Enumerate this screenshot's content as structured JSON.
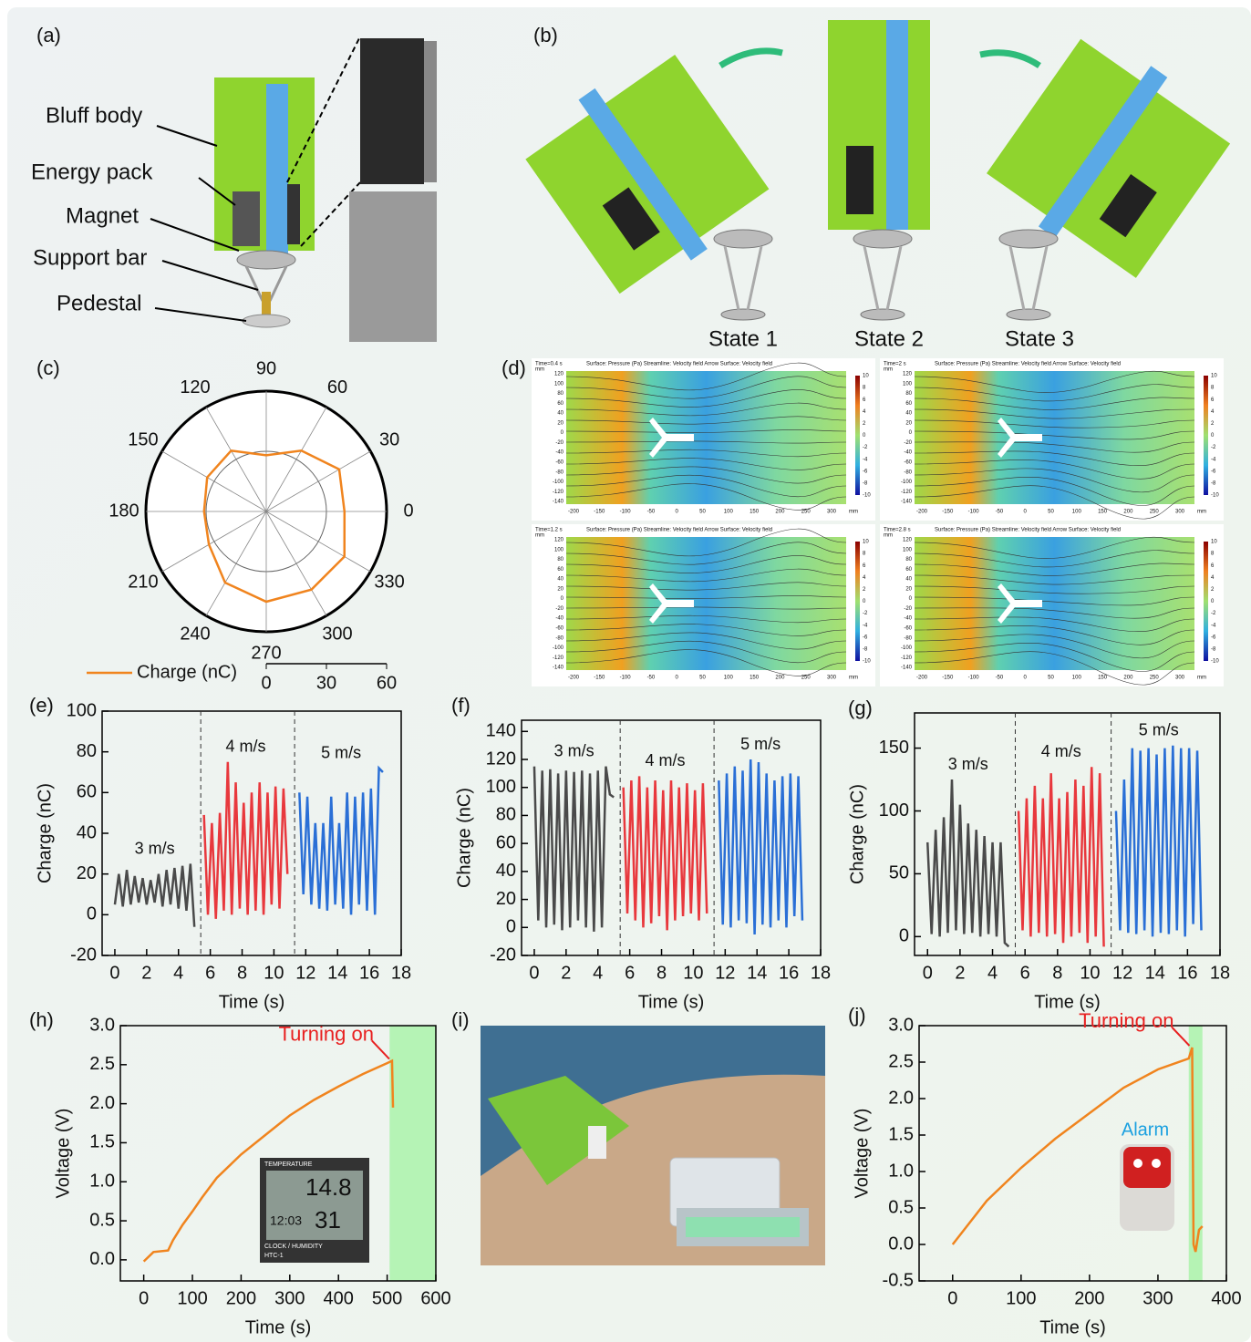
{
  "panel_labels": [
    "(a)",
    "(b)",
    "(c)",
    "(d)",
    "(e)",
    "(f)",
    "(g)",
    "(h)",
    "(i)",
    "(j)"
  ],
  "diagram_a": {
    "labels": [
      "Bluff body",
      "Energy pack",
      "Magnet",
      "Support bar",
      "Pedestal"
    ]
  },
  "diagram_b": {
    "states": [
      "State 1",
      "State 2",
      "State 3"
    ]
  },
  "simulation": {
    "panels": [
      "Time=0.4 s",
      "Time=2 s",
      "Time=1.2 s",
      "Time=2.8 s"
    ],
    "header": "Surface: Pressure (Pa)  Streamline: Velocity field  Arrow Surface: Velocity field",
    "unit": "mm",
    "xticks": [
      -200,
      -150,
      -100,
      -50,
      0,
      50,
      100,
      150,
      200,
      250,
      300
    ],
    "yticks": [
      120,
      100,
      80,
      60,
      40,
      20,
      0,
      -20,
      -40,
      -60,
      -80,
      -100,
      -120,
      -140
    ],
    "colorbar": [
      10,
      8,
      6,
      4,
      2,
      0,
      -2,
      -4,
      -6,
      -8,
      -10
    ]
  },
  "insets": {
    "thermometer": [
      "TEMPERATURE",
      "14.8",
      "12:03",
      "31",
      "CLOCK / HUMIDITY",
      "HTC-1"
    ],
    "alarm": "Alarm"
  },
  "chart_data": [
    {
      "type": "polar",
      "series": [
        {
          "name": "Charge (nC)",
          "color": "#f0841e",
          "theta": [
            0,
            30,
            60,
            90,
            120,
            150,
            180,
            210,
            240,
            270,
            300,
            330
          ],
          "values": [
            39,
            42,
            35,
            28,
            35,
            34,
            31,
            33,
            41,
            45,
            45,
            45
          ]
        }
      ],
      "thetaticks": [
        0,
        30,
        60,
        90,
        120,
        150,
        180,
        210,
        240,
        270,
        300,
        330
      ],
      "rlim": [
        0,
        60
      ],
      "rticks": [
        0,
        30,
        60
      ]
    },
    {
      "type": "line",
      "x_label": "Time (s)",
      "y_label": "Charge (nC)",
      "xlim": [
        -0.8,
        18
      ],
      "ylim": [
        -20,
        100
      ],
      "xticks": [
        0,
        2,
        4,
        6,
        8,
        10,
        12,
        14,
        16,
        18
      ],
      "yticks": [
        -20,
        0,
        20,
        40,
        60,
        80,
        100
      ],
      "dividers": [
        5.4,
        11.3
      ],
      "series": [
        {
          "name": "3 m/s",
          "color": "#4a4a4a",
          "x": [
            0,
            0.25,
            0.5,
            0.75,
            1,
            1.25,
            1.5,
            1.75,
            2,
            2.25,
            2.5,
            2.75,
            3,
            3.25,
            3.5,
            3.75,
            4,
            4.25,
            4.5,
            4.75,
            5
          ],
          "values": [
            5,
            20,
            4,
            22,
            5,
            19,
            6,
            18,
            5,
            17,
            6,
            20,
            4,
            22,
            5,
            23,
            3,
            24,
            2,
            25,
            -6
          ]
        },
        {
          "name": "4 m/s",
          "color": "#e8383d",
          "x": [
            5.6,
            5.85,
            6.1,
            6.35,
            6.6,
            6.85,
            7.1,
            7.35,
            7.6,
            7.85,
            8.1,
            8.35,
            8.6,
            8.85,
            9.1,
            9.35,
            9.6,
            9.85,
            10.1,
            10.35,
            10.6,
            10.85
          ],
          "values": [
            49,
            0,
            45,
            -2,
            50,
            2,
            75,
            0,
            65,
            3,
            55,
            0,
            60,
            2,
            65,
            0,
            60,
            5,
            63,
            3,
            62,
            20
          ]
        },
        {
          "name": "5 m/s",
          "color": "#2a6fd6",
          "x": [
            11.6,
            11.85,
            12.1,
            12.35,
            12.6,
            12.85,
            13.1,
            13.35,
            13.6,
            13.85,
            14.1,
            14.35,
            14.6,
            14.85,
            15.1,
            15.35,
            15.6,
            15.85,
            16.1,
            16.35,
            16.6,
            16.85
          ],
          "values": [
            60,
            10,
            58,
            5,
            45,
            3,
            45,
            2,
            58,
            5,
            45,
            3,
            60,
            0,
            58,
            5,
            60,
            2,
            62,
            0,
            72,
            70
          ]
        }
      ]
    },
    {
      "type": "line",
      "x_label": "Time (s)",
      "y_label": "Charge (nC)",
      "xlim": [
        -0.8,
        18
      ],
      "ylim": [
        -20,
        148
      ],
      "xticks": [
        0,
        2,
        4,
        6,
        8,
        10,
        12,
        14,
        16,
        18
      ],
      "yticks": [
        -20,
        0,
        20,
        40,
        60,
        80,
        100,
        120,
        140
      ],
      "dividers": [
        5.4,
        11.3
      ],
      "series": [
        {
          "name": "3 m/s",
          "color": "#4a4a4a",
          "x": [
            0,
            0.25,
            0.5,
            0.75,
            1,
            1.25,
            1.5,
            1.75,
            2,
            2.25,
            2.5,
            2.75,
            3,
            3.25,
            3.5,
            3.75,
            4,
            4.25,
            4.5,
            4.75,
            5
          ],
          "values": [
            115,
            5,
            112,
            0,
            113,
            2,
            110,
            -2,
            112,
            0,
            111,
            5,
            112,
            0,
            110,
            -3,
            112,
            0,
            115,
            95,
            93
          ]
        },
        {
          "name": "4 m/s",
          "color": "#e8383d",
          "x": [
            5.6,
            5.85,
            6.1,
            6.35,
            6.6,
            6.85,
            7.1,
            7.35,
            7.6,
            7.85,
            8.1,
            8.35,
            8.6,
            8.85,
            9.1,
            9.35,
            9.6,
            9.85,
            10.1,
            10.35,
            10.6,
            10.85
          ],
          "values": [
            100,
            10,
            105,
            5,
            108,
            0,
            100,
            3,
            105,
            8,
            98,
            -2,
            105,
            5,
            100,
            8,
            103,
            10,
            98,
            5,
            103,
            10
          ]
        },
        {
          "name": "5 m/s",
          "color": "#2a6fd6",
          "x": [
            11.6,
            11.85,
            12.1,
            12.35,
            12.6,
            12.85,
            13.1,
            13.35,
            13.6,
            13.85,
            14.1,
            14.35,
            14.6,
            14.85,
            15.1,
            15.35,
            15.6,
            15.85,
            16.1,
            16.35,
            16.6,
            16.85
          ],
          "values": [
            105,
            2,
            110,
            0,
            115,
            5,
            112,
            3,
            120,
            -5,
            118,
            2,
            110,
            0,
            105,
            5,
            108,
            0,
            110,
            8,
            108,
            5
          ]
        }
      ]
    },
    {
      "type": "line",
      "x_label": "Time (s)",
      "y_label": "Charge (nC)",
      "xlim": [
        -0.8,
        18
      ],
      "ylim": [
        -15,
        178
      ],
      "xticks": [
        0,
        2,
        4,
        6,
        8,
        10,
        12,
        14,
        16,
        18
      ],
      "yticks": [
        0,
        50,
        100,
        150
      ],
      "dividers": [
        5.4,
        11.3
      ],
      "series": [
        {
          "name": "3 m/s",
          "color": "#4a4a4a",
          "x": [
            0,
            0.25,
            0.5,
            0.75,
            1,
            1.25,
            1.5,
            1.75,
            2,
            2.25,
            2.5,
            2.75,
            3,
            3.25,
            3.5,
            3.75,
            4,
            4.25,
            4.5,
            4.75,
            5
          ],
          "values": [
            75,
            2,
            85,
            0,
            95,
            3,
            125,
            5,
            105,
            2,
            90,
            3,
            85,
            0,
            80,
            2,
            75,
            0,
            75,
            -5,
            -8
          ]
        },
        {
          "name": "4 m/s",
          "color": "#e8383d",
          "x": [
            5.6,
            5.85,
            6.1,
            6.35,
            6.6,
            6.85,
            7.1,
            7.35,
            7.6,
            7.85,
            8.1,
            8.35,
            8.6,
            8.85,
            9.1,
            9.35,
            9.6,
            9.85,
            10.1,
            10.35,
            10.6,
            10.85
          ],
          "values": [
            100,
            5,
            110,
            0,
            120,
            3,
            110,
            0,
            130,
            2,
            110,
            -5,
            115,
            0,
            125,
            3,
            120,
            -5,
            135,
            0,
            130,
            -8
          ]
        },
        {
          "name": "5 m/s",
          "color": "#2a6fd6",
          "x": [
            11.6,
            11.85,
            12.1,
            12.35,
            12.6,
            12.85,
            13.1,
            13.35,
            13.6,
            13.85,
            14.1,
            14.35,
            14.6,
            14.85,
            15.1,
            15.35,
            15.6,
            15.85,
            16.1,
            16.35,
            16.6,
            16.85
          ],
          "values": [
            100,
            5,
            125,
            3,
            150,
            2,
            148,
            5,
            150,
            0,
            145,
            3,
            150,
            2,
            152,
            5,
            150,
            0,
            150,
            10,
            148,
            5
          ]
        }
      ]
    },
    {
      "type": "line",
      "x_label": "Time (s)",
      "y_label": "Voltage (V)",
      "xlim": [
        -48,
        600
      ],
      "ylim": [
        -0.27,
        3.0
      ],
      "xticks": [
        0,
        100,
        200,
        300,
        400,
        500,
        600
      ],
      "yticks": [
        {
          "value": 0,
          "label": "0.0"
        },
        0.5,
        {
          "value": 1,
          "label": "1.0"
        },
        1.5,
        {
          "value": 2,
          "label": "2.0"
        },
        2.5,
        {
          "value": 3,
          "label": "3.0"
        }
      ],
      "shade": [
        505,
        600
      ],
      "annotation": "Turning on",
      "series": [
        {
          "color": "#f0841e",
          "x": [
            0,
            20,
            50,
            60,
            80,
            100,
            120,
            150,
            200,
            250,
            300,
            350,
            400,
            450,
            500,
            510,
            512
          ],
          "values": [
            -0.02,
            0.1,
            0.12,
            0.25,
            0.45,
            0.62,
            0.8,
            1.05,
            1.35,
            1.6,
            1.85,
            2.05,
            2.22,
            2.38,
            2.52,
            2.55,
            1.95
          ]
        }
      ]
    },
    {
      "type": "line",
      "x_label": "Time (s)",
      "y_label": "Voltage (V)",
      "xlim": [
        -49,
        400
      ],
      "ylim": [
        -0.5,
        3.0
      ],
      "xticks": [
        0,
        100,
        200,
        300,
        400
      ],
      "yticks": [
        -0.5,
        {
          "value": 0,
          "label": "0.0"
        },
        0.5,
        {
          "value": 1,
          "label": "1.0"
        },
        1.5,
        {
          "value": 2,
          "label": "2.0"
        },
        2.5,
        {
          "value": 3,
          "label": "3.0"
        }
      ],
      "shade": [
        345,
        365
      ],
      "annotation": "Turning on",
      "series": [
        {
          "color": "#f0841e",
          "x": [
            0,
            25,
            50,
            100,
            150,
            200,
            250,
            300,
            345,
            350,
            352,
            355,
            360,
            365
          ],
          "values": [
            0,
            0.3,
            0.6,
            1.05,
            1.45,
            1.8,
            2.15,
            2.4,
            2.55,
            2.7,
            0,
            -0.1,
            0.2,
            0.25
          ]
        }
      ]
    }
  ]
}
